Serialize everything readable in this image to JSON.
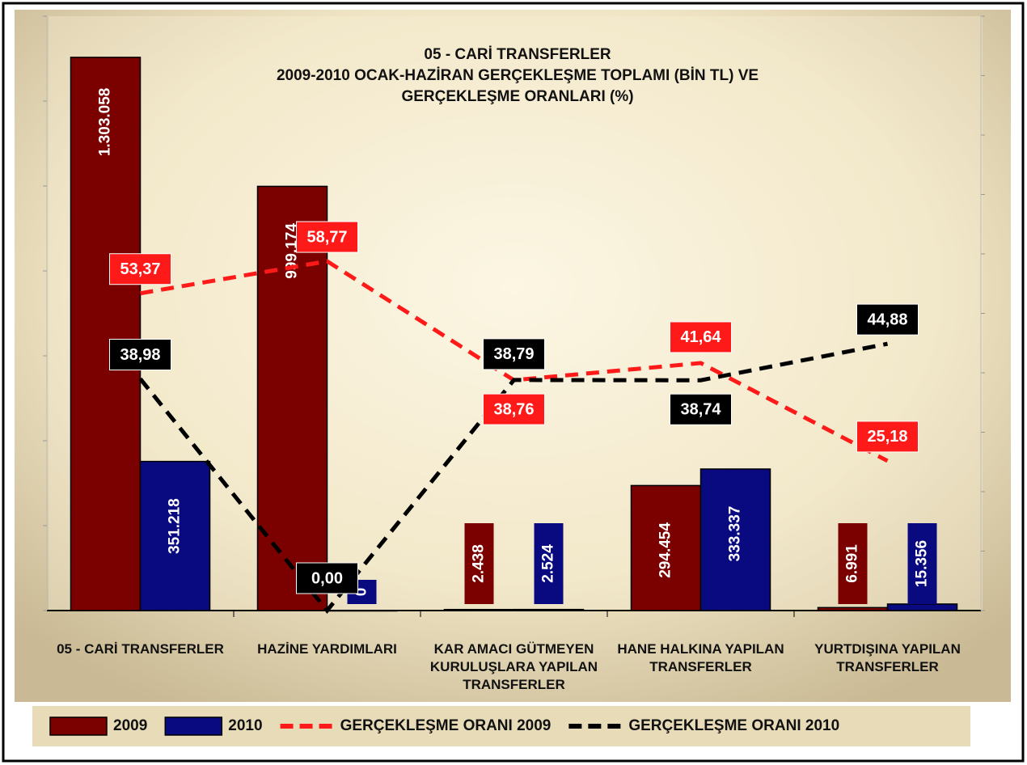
{
  "chart_data": {
    "type": "bar_line",
    "title": [
      "05 - CARİ TRANSFERLER",
      "2009-2010 OCAK-HAZİRAN GERÇEKLEŞME TOPLAMI (BİN TL) VE",
      "GERÇEKLEŞME ORANLARI (%)"
    ],
    "categories": [
      "05 - CARİ TRANSFERLER",
      "HAZİNE YARDIMLARI",
      "KAR AMACI GÜTMEYEN\nKURULUŞLARA YAPILAN\nTRANSFERLER",
      "HANE HALKINA YAPILAN\nTRANSFERLER",
      "YURTDIŞINA YAPILAN\nTRANSFERLER"
    ],
    "series": [
      {
        "name": "2009",
        "type": "bar",
        "color": "#7b0000",
        "values": [
          1303058,
          999174,
          2438,
          294454,
          6991
        ],
        "value_labels": [
          "1.303.058",
          "999.174",
          "2.438",
          "294.454",
          "6.991"
        ]
      },
      {
        "name": "2010",
        "type": "bar",
        "color": "#0a0a80",
        "values": [
          351218,
          0,
          2524,
          333337,
          15356
        ],
        "value_labels": [
          "351.218",
          "0",
          "2.524",
          "333.337",
          "15.356"
        ]
      },
      {
        "name": "GERÇEKLEŞME ORANI 2009",
        "type": "line",
        "axis": "y2",
        "color": "#ff1a1a",
        "values": [
          53.37,
          58.77,
          38.76,
          41.64,
          25.18
        ],
        "value_labels": [
          "53,37",
          "58,77",
          "38,76",
          "41,64",
          "25,18"
        ]
      },
      {
        "name": "GERÇEKLEŞME ORANI 2010",
        "type": "line",
        "axis": "y2",
        "color": "#000000",
        "values": [
          38.98,
          0.0,
          38.79,
          38.74,
          44.88
        ],
        "value_labels": [
          "38,98",
          "0,00",
          "38,79",
          "38,74",
          "44,88"
        ]
      }
    ],
    "ylim": [
      0,
      1400000
    ],
    "yticks": [
      0,
      200000,
      400000,
      600000,
      800000,
      1000000,
      1200000,
      1400000
    ],
    "y2lim": [
      0,
      100
    ],
    "y2ticks": [
      0,
      10,
      20,
      30,
      40,
      50,
      60,
      70,
      80,
      90,
      100
    ]
  }
}
